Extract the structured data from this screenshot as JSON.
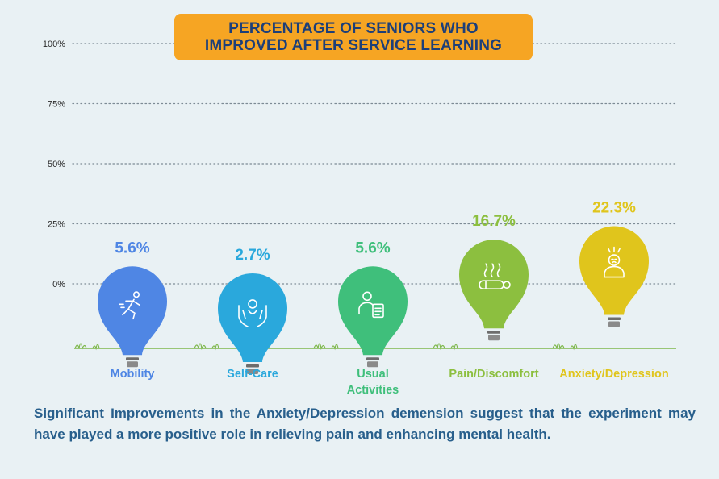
{
  "title": {
    "line1": "PERCENTAGE OF SENIORS WHO",
    "line2": "IMPROVED AFTER SERVICE LEARNING"
  },
  "chart_data": {
    "type": "bar",
    "title": "PERCENTAGE OF SENIORS WHO IMPROVED AFTER SERVICE LEARNING",
    "categories": [
      "Mobility",
      "Self-Care",
      "Usual Activities",
      "Pain/Discomfort",
      "Anxiety/Depression"
    ],
    "category_lines": [
      [
        "Mobility"
      ],
      [
        "Self-Care"
      ],
      [
        "Usual",
        "Activities"
      ],
      [
        "Pain/Discomfort"
      ],
      [
        "Anxiety/Depression"
      ]
    ],
    "values": [
      5.6,
      2.7,
      5.6,
      16.7,
      22.3
    ],
    "value_labels": [
      "5.6%",
      "2.7%",
      "5.6%",
      "16.7%",
      "22.3%"
    ],
    "icons": [
      "running-person-icon",
      "hands-care-icon",
      "person-document-icon",
      "lying-person-heat-icon",
      "stressed-person-icon"
    ],
    "colors": [
      "#4f86e4",
      "#2aa8dc",
      "#3fbf7b",
      "#8cbf3f",
      "#e0c51c"
    ],
    "y_ticks": [
      0,
      25,
      50,
      75,
      100
    ],
    "y_tick_labels": [
      "0%",
      "25%",
      "50%",
      "75%",
      "100%"
    ],
    "ylim": [
      0,
      100
    ],
    "grid": "dotted-horizontal",
    "xlabel": "",
    "ylabel": ""
  },
  "colors": {
    "background": "#e9f1f4",
    "banner": "#f6a523",
    "title_text": "#1d3f79",
    "ground": "#7fb84d",
    "gridline": "#7d8b95",
    "footer_text": "#285f8c"
  },
  "footer": {
    "text": "Significant Improvements in the Anxiety/Depression demension suggest that the experiment may have played a more positive role in relieving pain and enhancing mental health."
  }
}
